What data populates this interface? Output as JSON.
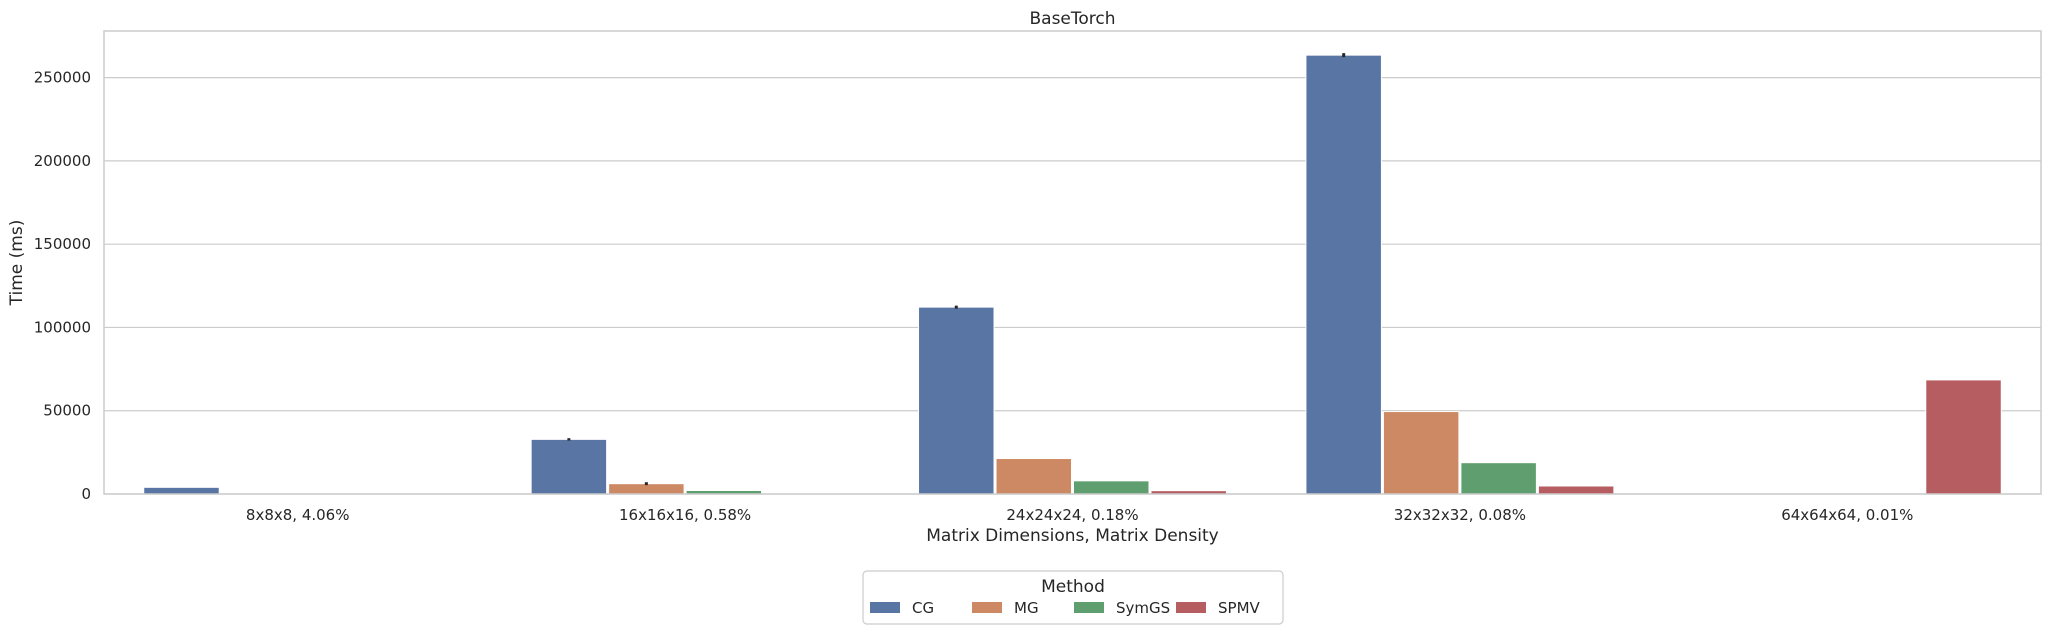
{
  "chart_data": {
    "type": "bar",
    "title": "BaseTorch",
    "xlabel": "Matrix Dimensions, Matrix Density",
    "ylabel": "Time (ms)",
    "categories": [
      "8x8x8, 4.06%",
      "16x16x16, 0.58%",
      "24x24x24, 0.18%",
      "32x32x32, 0.08%",
      "64x64x64, 0.01%"
    ],
    "ylim": [
      0,
      278000
    ],
    "yticks": [
      0,
      50000,
      100000,
      150000,
      200000,
      250000
    ],
    "grid": true,
    "series": [
      {
        "name": "CG",
        "color": "#5875a4",
        "values": [
          4000,
          32800,
          112200,
          263500,
          0
        ],
        "err": [
          0,
          700,
          900,
          1200,
          0
        ]
      },
      {
        "name": "MG",
        "color": "#cc8963",
        "values": [
          0,
          6200,
          21300,
          49500,
          0
        ],
        "err": [
          0,
          900,
          0,
          0,
          0
        ]
      },
      {
        "name": "SymGS",
        "color": "#5f9e6e",
        "values": [
          0,
          2100,
          7900,
          18800,
          0
        ],
        "err": [
          0,
          0,
          0,
          0,
          0
        ]
      },
      {
        "name": "SPMV",
        "color": "#b55d60",
        "values": [
          0,
          400,
          2000,
          4800,
          68500
        ],
        "err": [
          0,
          0,
          0,
          0,
          0
        ]
      }
    ],
    "legend": {
      "title": "Method",
      "placement": "bottom-center"
    }
  }
}
